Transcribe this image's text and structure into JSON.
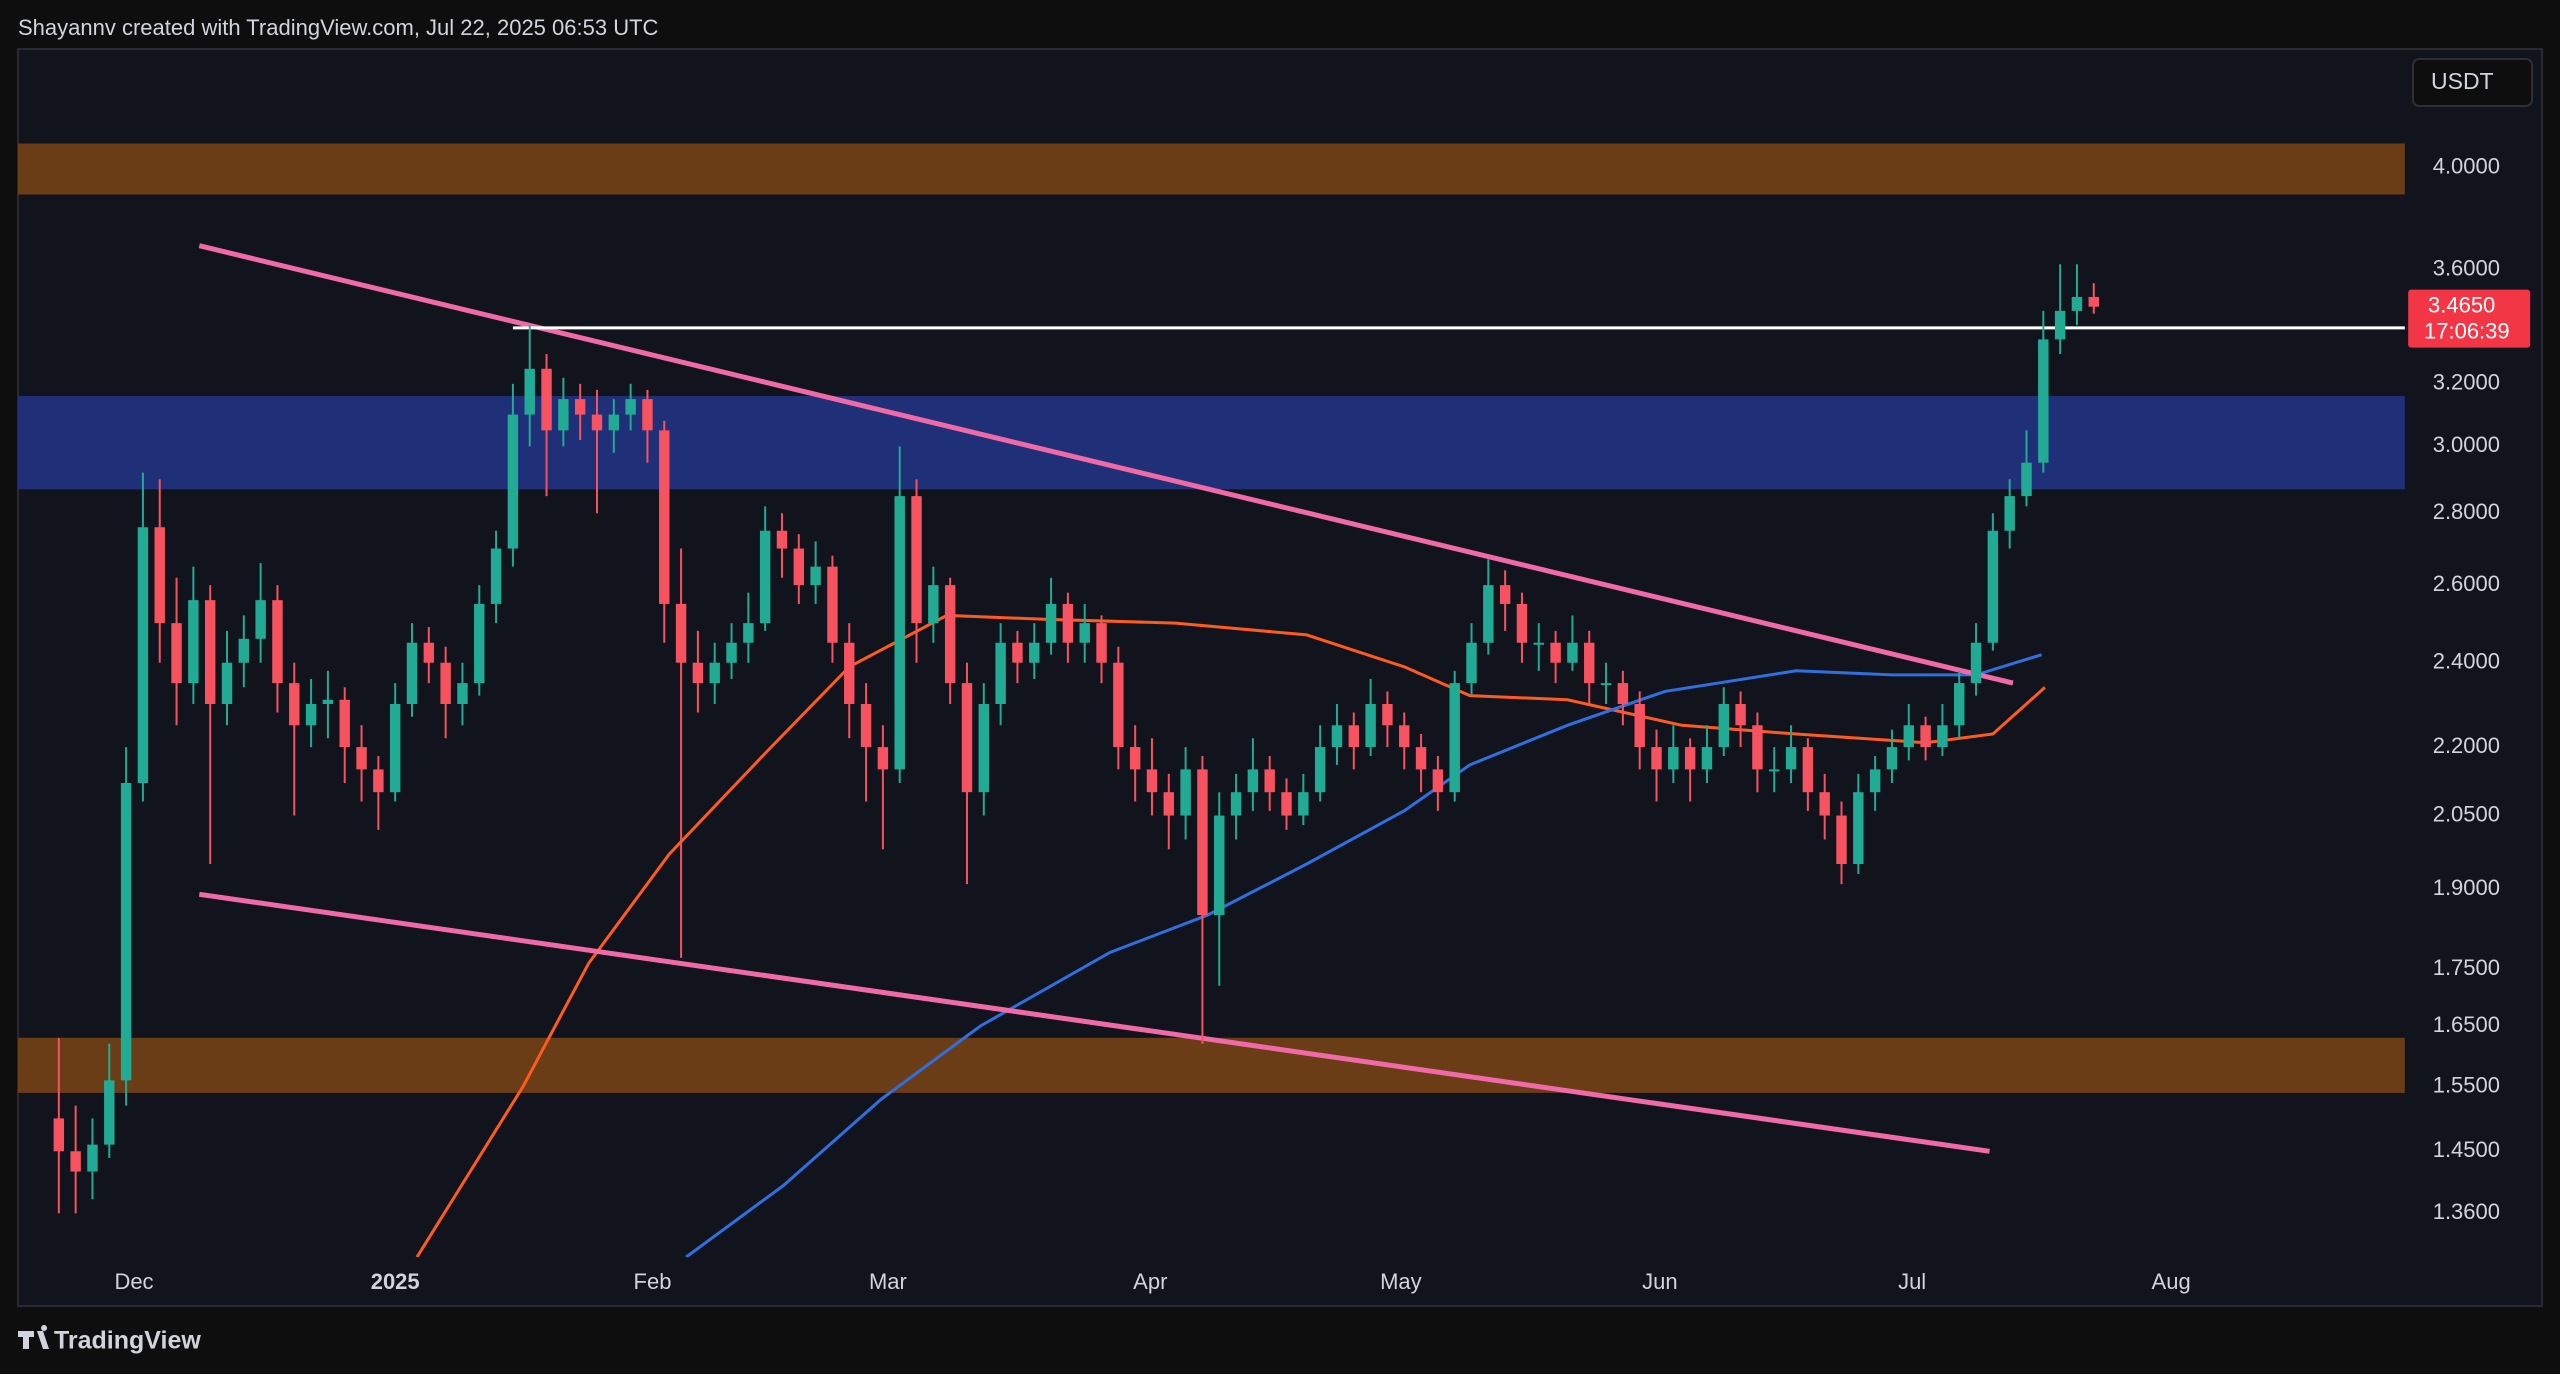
{
  "header": {
    "text": "Shayannv created with TradingView.com, Jul 22, 2025 06:53 UTC"
  },
  "currency": "USDT",
  "footer": {
    "logo": "TradingView"
  },
  "chart_data": {
    "type": "candlestick",
    "log_scale": true,
    "grid": false,
    "colors": {
      "up": "#22ab94",
      "down": "#f7525f"
    },
    "candles": {
      "open": [
        1.5,
        1.45,
        1.42,
        1.46,
        1.56,
        2.12,
        2.76,
        2.5,
        2.35,
        2.56,
        2.3,
        2.4,
        2.46,
        2.56,
        2.35,
        2.25,
        2.3,
        2.31,
        2.2,
        2.15,
        2.1,
        2.3,
        2.45,
        2.4,
        2.3,
        2.35,
        2.55,
        2.7,
        3.1,
        3.25,
        3.05,
        3.15,
        3.1,
        3.05,
        3.1,
        3.15,
        3.05,
        2.55,
        2.4,
        2.35,
        2.4,
        2.45,
        2.5,
        2.75,
        2.7,
        2.6,
        2.65,
        2.45,
        2.3,
        2.2,
        2.15,
        2.85,
        2.5,
        2.6,
        2.35,
        2.1,
        2.3,
        2.45,
        2.4,
        2.45,
        2.55,
        2.45,
        2.5,
        2.4,
        2.2,
        2.15,
        2.1,
        2.05,
        2.15,
        1.85,
        2.05,
        2.1,
        2.15,
        2.1,
        2.05,
        2.1,
        2.2,
        2.25,
        2.2,
        2.3,
        2.25,
        2.2,
        2.15,
        2.1,
        2.35,
        2.45,
        2.6,
        2.55,
        2.45,
        2.45,
        2.4,
        2.45,
        2.35,
        2.35,
        2.3,
        2.2,
        2.15,
        2.2,
        2.15,
        2.2,
        2.3,
        2.25,
        2.15,
        2.15,
        2.2,
        2.1,
        2.05,
        1.95,
        2.1,
        2.15,
        2.2,
        2.25,
        2.2,
        2.25,
        2.35,
        2.45,
        2.75,
        2.85,
        2.95,
        3.35,
        3.45,
        3.5
      ],
      "high": [
        1.63,
        1.52,
        1.5,
        1.62,
        2.2,
        2.92,
        2.9,
        2.62,
        2.65,
        2.6,
        2.48,
        2.52,
        2.66,
        2.6,
        2.4,
        2.36,
        2.38,
        2.34,
        2.25,
        2.18,
        2.35,
        2.5,
        2.49,
        2.44,
        2.4,
        2.6,
        2.75,
        3.2,
        3.4,
        3.3,
        3.22,
        3.2,
        3.18,
        3.15,
        3.2,
        3.18,
        3.08,
        2.7,
        2.48,
        2.45,
        2.5,
        2.58,
        2.82,
        2.8,
        2.74,
        2.72,
        2.68,
        2.5,
        2.35,
        2.25,
        3.0,
        2.9,
        2.65,
        2.62,
        2.4,
        2.35,
        2.5,
        2.48,
        2.5,
        2.62,
        2.58,
        2.55,
        2.52,
        2.44,
        2.25,
        2.22,
        2.14,
        2.2,
        2.18,
        2.1,
        2.14,
        2.22,
        2.18,
        2.13,
        2.14,
        2.25,
        2.3,
        2.28,
        2.36,
        2.33,
        2.28,
        2.23,
        2.18,
        2.38,
        2.5,
        2.67,
        2.64,
        2.58,
        2.5,
        2.48,
        2.52,
        2.48,
        2.4,
        2.38,
        2.33,
        2.24,
        2.25,
        2.22,
        2.25,
        2.34,
        2.33,
        2.28,
        2.2,
        2.25,
        2.22,
        2.14,
        2.08,
        2.14,
        2.18,
        2.24,
        2.3,
        2.27,
        2.3,
        2.38,
        2.5,
        2.8,
        2.9,
        3.05,
        3.45,
        3.62,
        3.62,
        3.55
      ],
      "low": [
        1.36,
        1.36,
        1.38,
        1.44,
        1.52,
        2.08,
        2.4,
        2.25,
        2.3,
        1.95,
        2.25,
        2.34,
        2.4,
        2.28,
        2.05,
        2.2,
        2.22,
        2.12,
        2.08,
        2.02,
        2.08,
        2.27,
        2.35,
        2.22,
        2.25,
        2.32,
        2.5,
        2.65,
        3.0,
        2.85,
        3.0,
        3.02,
        2.8,
        2.98,
        3.05,
        2.95,
        2.45,
        1.77,
        2.28,
        2.3,
        2.36,
        2.4,
        2.48,
        2.62,
        2.55,
        2.55,
        2.4,
        2.22,
        2.08,
        1.98,
        2.12,
        2.4,
        2.45,
        2.3,
        1.91,
        2.05,
        2.25,
        2.35,
        2.36,
        2.42,
        2.4,
        2.4,
        2.35,
        2.15,
        2.08,
        2.05,
        1.98,
        2.0,
        1.62,
        1.72,
        2.0,
        2.06,
        2.06,
        2.02,
        2.03,
        2.08,
        2.16,
        2.15,
        2.18,
        2.2,
        2.15,
        2.1,
        2.06,
        2.08,
        2.32,
        2.42,
        2.48,
        2.4,
        2.38,
        2.35,
        2.38,
        2.3,
        2.3,
        2.25,
        2.15,
        2.08,
        2.12,
        2.08,
        2.12,
        2.18,
        2.2,
        2.1,
        2.1,
        2.12,
        2.06,
        2.0,
        1.91,
        1.93,
        2.06,
        2.12,
        2.17,
        2.17,
        2.18,
        2.22,
        2.32,
        2.43,
        2.7,
        2.82,
        2.92,
        3.3,
        3.4,
        3.44
      ],
      "close": [
        1.45,
        1.42,
        1.46,
        1.56,
        2.12,
        2.76,
        2.5,
        2.35,
        2.56,
        2.3,
        2.4,
        2.46,
        2.56,
        2.35,
        2.25,
        2.3,
        2.31,
        2.2,
        2.15,
        2.1,
        2.3,
        2.45,
        2.4,
        2.3,
        2.35,
        2.55,
        2.7,
        3.1,
        3.25,
        3.05,
        3.15,
        3.1,
        3.05,
        3.1,
        3.15,
        3.05,
        2.55,
        2.4,
        2.35,
        2.4,
        2.45,
        2.5,
        2.75,
        2.7,
        2.6,
        2.65,
        2.45,
        2.3,
        2.2,
        2.15,
        2.85,
        2.5,
        2.6,
        2.35,
        2.1,
        2.3,
        2.45,
        2.4,
        2.45,
        2.55,
        2.45,
        2.5,
        2.4,
        2.2,
        2.15,
        2.1,
        2.05,
        2.15,
        1.85,
        2.05,
        2.1,
        2.15,
        2.1,
        2.05,
        2.1,
        2.2,
        2.25,
        2.2,
        2.3,
        2.25,
        2.2,
        2.15,
        2.1,
        2.35,
        2.45,
        2.6,
        2.55,
        2.45,
        2.45,
        2.4,
        2.45,
        2.35,
        2.35,
        2.3,
        2.2,
        2.15,
        2.2,
        2.15,
        2.2,
        2.3,
        2.25,
        2.15,
        2.15,
        2.2,
        2.1,
        2.05,
        1.95,
        2.1,
        2.15,
        2.2,
        2.25,
        2.2,
        2.25,
        2.35,
        2.45,
        2.75,
        2.85,
        2.95,
        3.35,
        3.45,
        3.5,
        3.465
      ]
    },
    "moving_averages": [
      {
        "color": "#ff5a1f",
        "x": [
          21.3,
          27.6,
          31.5,
          36.3,
          42.1,
          47,
          52.8,
          58.6,
          66.4,
          74.2,
          80,
          83.9,
          89.7,
          96.5,
          103.3,
          111,
          115,
          118.1
        ],
        "values": [
          1.3,
          1.55,
          1.76,
          1.97,
          2.19,
          2.39,
          2.52,
          2.51,
          2.5,
          2.47,
          2.39,
          2.32,
          2.31,
          2.25,
          2.23,
          2.21,
          2.23,
          2.34
        ]
      },
      {
        "color": "#2f6fe0",
        "x": [
          37.3,
          43.1,
          48.9,
          54.8,
          62.5,
          68.3,
          74.2,
          80,
          83.9,
          89.7,
          95.5,
          103.3,
          109,
          114,
          117.9
        ],
        "values": [
          1.3,
          1.4,
          1.53,
          1.65,
          1.78,
          1.85,
          1.95,
          2.06,
          2.16,
          2.25,
          2.33,
          2.38,
          2.37,
          2.37,
          2.42
        ]
      }
    ],
    "trendlines": [
      {
        "color": "#f06aa8",
        "x": [
          8.35,
          116.2
        ],
        "values": [
          3.69,
          2.35
        ]
      },
      {
        "color": "#f06aa8",
        "x": [
          8.35,
          114.8
        ],
        "values": [
          1.89,
          1.45
        ]
      }
    ],
    "zones": [
      {
        "color": "#6b3d17",
        "range": [
          3.89,
          4.1
        ]
      },
      {
        "color": "#1f2f78",
        "range": [
          2.87,
          3.16
        ]
      },
      {
        "color": "#6b3d17",
        "range": [
          1.54,
          1.63
        ]
      }
    ],
    "levels": [
      {
        "color": "#ffffff",
        "value": 3.39,
        "x_start": 27
      }
    ],
    "last_price": {
      "value": 3.465,
      "label": "3.4650"
    },
    "countdown": "17:06:39",
    "xlim": [
      -2.43,
      139.5
    ],
    "ylim": [
      1.3,
      4.52
    ],
    "xticks": [
      {
        "value": 4.47,
        "label": "Dec"
      },
      {
        "value": 20,
        "label": "2025"
      },
      {
        "value": 35.3,
        "label": "Feb"
      },
      {
        "value": 49.3,
        "label": "Mar"
      },
      {
        "value": 64.9,
        "label": "Apr"
      },
      {
        "value": 79.8,
        "label": "May"
      },
      {
        "value": 95.2,
        "label": "Jun"
      },
      {
        "value": 110.2,
        "label": "Jul"
      },
      {
        "value": 125.6,
        "label": "Aug"
      }
    ],
    "yticks": [
      {
        "value": 4,
        "label": "4.0000"
      },
      {
        "value": 3.6,
        "label": "3.6000"
      },
      {
        "value": 3.2,
        "label": "3.2000"
      },
      {
        "value": 3,
        "label": "3.0000"
      },
      {
        "value": 2.8,
        "label": "2.8000"
      },
      {
        "value": 2.6,
        "label": "2.6000"
      },
      {
        "value": 2.4,
        "label": "2.4000"
      },
      {
        "value": 2.2,
        "label": "2.2000"
      },
      {
        "value": 2.05,
        "label": "2.0500"
      },
      {
        "value": 1.9,
        "label": "1.9000"
      },
      {
        "value": 1.75,
        "label": "1.7500"
      },
      {
        "value": 1.65,
        "label": "1.6500"
      },
      {
        "value": 1.55,
        "label": "1.5500"
      },
      {
        "value": 1.45,
        "label": "1.4500"
      },
      {
        "value": 1.36,
        "label": "1.3600"
      }
    ]
  }
}
